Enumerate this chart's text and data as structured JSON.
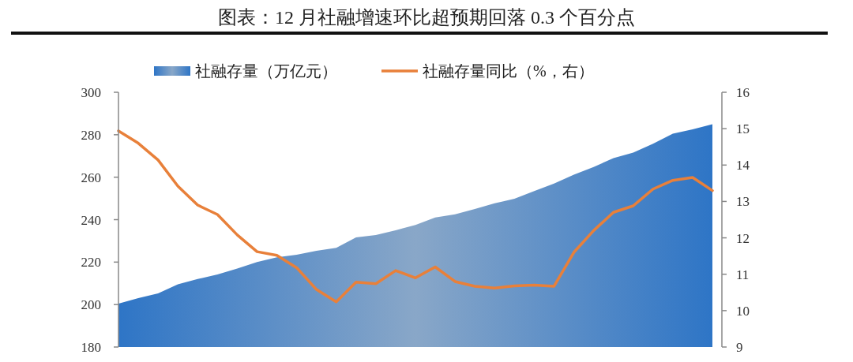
{
  "chart_data": {
    "type": "area",
    "title": "图表：12 月社融增速环比超预期回落 0.3 个百分点",
    "categories": [
      null,
      null,
      null,
      null,
      null,
      null,
      null,
      null,
      null,
      null,
      null,
      null,
      null,
      null,
      null,
      null,
      null,
      null,
      null,
      null,
      null,
      null,
      null,
      null,
      null,
      null,
      null,
      null,
      null,
      null,
      null
    ],
    "series": [
      {
        "name": "社融存量（万亿元）",
        "type": "area",
        "color": "#2e75c6",
        "values": [
          200.4,
          203,
          205.3,
          209.5,
          212,
          214.2,
          217,
          220,
          222.3,
          223.5,
          225.3,
          226.7,
          231.6,
          232.8,
          235,
          237.5,
          241,
          242.5,
          245,
          247.7,
          249.8,
          253.5,
          257,
          261.2,
          264.8,
          269,
          271.6,
          275.8,
          280.5,
          282.5,
          285
        ]
      },
      {
        "name": "社融存量同比（%，右）",
        "type": "line",
        "axis": "y2",
        "color": "#e8803a",
        "values": [
          14.94,
          14.6,
          14.14,
          13.42,
          12.9,
          12.64,
          12.08,
          11.62,
          11.52,
          11.18,
          10.58,
          10.24,
          10.78,
          10.74,
          11.1,
          10.9,
          11.2,
          10.8,
          10.67,
          10.62,
          10.68,
          10.7,
          10.67,
          11.6,
          12.2,
          12.7,
          12.88,
          13.34,
          13.58,
          13.66,
          13.3
        ]
      }
    ],
    "ylim": [
      180,
      300
    ],
    "yticks": [
      180,
      200,
      220,
      240,
      260,
      280,
      300
    ],
    "y2lim": [
      9,
      16
    ],
    "y2ticks": [
      9,
      10,
      11,
      12,
      13,
      14,
      15,
      16
    ],
    "tick_labels": "y",
    "legend": "top",
    "grid": false
  }
}
